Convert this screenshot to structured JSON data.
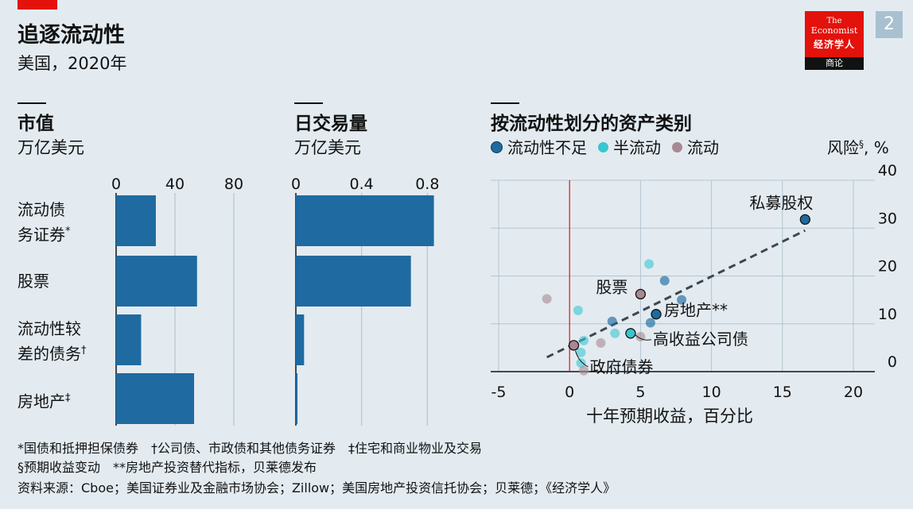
{
  "header": {
    "title": "追逐流动性",
    "subtitle": "美国，2020年",
    "page_number": "2"
  },
  "logo": {
    "line1": "The",
    "line2": "Economist",
    "line3": "经济学人",
    "line4": "商论"
  },
  "colors": {
    "background": "#e3ebf1",
    "bar": "#1f6aa0",
    "illiquid": "#1f6aa0",
    "semi_liquid": "#39c6d0",
    "liquid": "#a78893",
    "zero_line": "#e3120b",
    "grid": "#b4c4d0",
    "brand_red": "#e3120b"
  },
  "panels": {
    "market_cap": {
      "title": "市值",
      "unit": "万亿美元"
    },
    "daily_volume": {
      "title": "日交易量",
      "unit": "万亿美元"
    },
    "scatter": {
      "title": "按流动性划分的资产类别",
      "legend": [
        {
          "label": "流动性不足",
          "key": "illiquid"
        },
        {
          "label": "半流动",
          "key": "semi_liquid"
        },
        {
          "label": "流动",
          "key": "liquid"
        }
      ],
      "y_label": "风险",
      "y_label_sup": "§",
      "y_label_unit": ", %",
      "x_label": "十年预期收益，百分比"
    }
  },
  "chart_data": [
    {
      "type": "bar",
      "orientation": "horizontal",
      "title": "市值",
      "unit": "万亿美元",
      "categories": [
        {
          "line1": "流动债",
          "line2": "务证券",
          "sup": "*"
        },
        {
          "line1": "股票",
          "line2": "",
          "sup": ""
        },
        {
          "line1": "流动性较",
          "line2": "差的债务",
          "sup": "†"
        },
        {
          "line1": "房地产",
          "line2": "",
          "sup": "‡"
        }
      ],
      "values": [
        27,
        55,
        17,
        53
      ],
      "xlim": [
        0,
        100
      ],
      "ticks": [
        0,
        40,
        80
      ],
      "tick_labels": [
        "0",
        "40",
        "80"
      ],
      "grid": true
    },
    {
      "type": "bar",
      "orientation": "horizontal",
      "title": "日交易量",
      "unit": "万亿美元",
      "categories": [
        "流动债务证券",
        "股票",
        "流动性较差的债务",
        "房地产"
      ],
      "values": [
        0.84,
        0.7,
        0.05,
        0.01
      ],
      "xlim": [
        0,
        0.9
      ],
      "ticks": [
        0,
        0.4,
        0.8
      ],
      "tick_labels": [
        "0",
        "0.4",
        "0.8"
      ],
      "grid": true
    },
    {
      "type": "scatter",
      "title": "按流动性划分的资产类别",
      "xlabel": "十年预期收益，百分比",
      "ylabel": "风险§, %",
      "xlim": [
        -5,
        22
      ],
      "ylim": [
        -1.5,
        40
      ],
      "x_ticks": [
        -5,
        0,
        5,
        10,
        15,
        20
      ],
      "x_tick_labels": [
        "-5",
        "0",
        "5",
        "10",
        "15",
        "20"
      ],
      "y_ticks": [
        0,
        10,
        20,
        30,
        40
      ],
      "y_tick_labels": [
        "0",
        "10",
        "20",
        "30",
        "40"
      ],
      "grid": true,
      "series": [
        {
          "name": "流动性不足",
          "key": "illiquid",
          "points": [
            {
              "x": 16.6,
              "y": 31.8
            },
            {
              "x": 6.7,
              "y": 19.0
            },
            {
              "x": 7.9,
              "y": 15.0
            },
            {
              "x": 6.1,
              "y": 12.0
            },
            {
              "x": 3.0,
              "y": 10.5
            },
            {
              "x": 5.7,
              "y": 10.2
            }
          ]
        },
        {
          "name": "半流动",
          "key": "semi_liquid",
          "points": [
            {
              "x": 5.6,
              "y": 22.5
            },
            {
              "x": 0.6,
              "y": 12.8
            },
            {
              "x": 4.3,
              "y": 8.0
            },
            {
              "x": 3.2,
              "y": 8.0
            },
            {
              "x": 1.0,
              "y": 6.5
            },
            {
              "x": 0.8,
              "y": 4.0
            },
            {
              "x": 0.8,
              "y": 1.8
            }
          ]
        },
        {
          "name": "流动",
          "key": "liquid",
          "points": [
            {
              "x": -1.6,
              "y": 15.2
            },
            {
              "x": 5.0,
              "y": 16.2
            },
            {
              "x": 5.0,
              "y": 7.3
            },
            {
              "x": 2.2,
              "y": 6.0
            },
            {
              "x": 0.3,
              "y": 5.5
            },
            {
              "x": 1.0,
              "y": 0.2
            }
          ]
        }
      ],
      "trendline": {
        "x": [
          -1.6,
          16.6
        ],
        "y": [
          3.0,
          29.5
        ]
      },
      "annotations": [
        {
          "text": "私募股权",
          "x": 16.6,
          "y": 31.8
        },
        {
          "text": "股票",
          "x": 5.0,
          "y": 16.2
        },
        {
          "text": "房地产**",
          "x": 6.1,
          "y": 12.0
        },
        {
          "text": "高收益公司债",
          "x": 4.3,
          "y": 8.0
        },
        {
          "text": "政府债券",
          "x": 0.3,
          "y": 5.5
        }
      ]
    }
  ],
  "footnotes": {
    "line1": "*国债和抵押担保债券　†公司债、市政债和其他债务证券　‡住宅和商业物业及交易",
    "line2": "§预期收益变动　**房地产投资替代指标，贝莱德发布",
    "source": "资料来源：Cboe；美国证券业及金融市场协会；Zillow；美国房地产投资信托协会；贝莱德；《经济学人》"
  }
}
